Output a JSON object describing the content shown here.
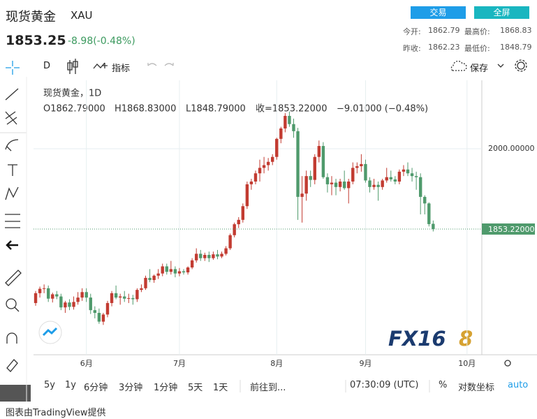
{
  "header": {
    "name": "现货黄金",
    "symbol": "XAU",
    "price": "1853.25",
    "change": "-8.98(-0.48%)",
    "buttons": [
      "交易",
      "全屏"
    ],
    "stats": [
      [
        "今开:",
        "1862.79"
      ],
      [
        "最高价:",
        "1868.83"
      ],
      [
        "昨收:",
        "1862.23"
      ],
      [
        "最低价:",
        "1848.79"
      ]
    ]
  },
  "toolbar": {
    "interval": "D",
    "indicators": "指标",
    "save": "保存"
  },
  "chart_data": {
    "type": "candlestick",
    "legend": {
      "title": "现货黄金，1D",
      "open": "O1862.79000",
      "high": "H1868.83000",
      "low": "L1848.79000",
      "close": "收=1853.22000",
      "change": "−9.01000 (−0.48%)"
    },
    "up_color": "#c23b31",
    "down_color": "#4f9a6c",
    "grid": true,
    "xlim": [
      -0.5,
      105.5
    ],
    "xticks": [
      {
        "value": 12,
        "label": "6月"
      },
      {
        "value": 34,
        "label": "7月"
      },
      {
        "value": 57,
        "label": "8月"
      },
      {
        "value": 78,
        "label": "9月"
      },
      {
        "value": 102,
        "label": "10月"
      }
    ],
    "ylim": [
      1623.5,
      2125
    ],
    "yticks": [
      {
        "value": 2000,
        "label": "2000.00000"
      }
    ],
    "last_price": {
      "value": 1853.22,
      "label": "1853.22000"
    },
    "logo": [
      "FX16",
      "8"
    ],
    "ohlc": [
      [
        1718,
        1740,
        1713,
        1736
      ],
      [
        1736,
        1748,
        1728,
        1744
      ],
      [
        1744,
        1752,
        1736,
        1745
      ],
      [
        1745,
        1750,
        1720,
        1726
      ],
      [
        1726,
        1737,
        1719,
        1734
      ],
      [
        1734,
        1740,
        1725,
        1730
      ],
      [
        1730,
        1735,
        1705,
        1710
      ],
      [
        1710,
        1722,
        1700,
        1719
      ],
      [
        1719,
        1725,
        1705,
        1711
      ],
      [
        1711,
        1730,
        1706,
        1720
      ],
      [
        1720,
        1738,
        1715,
        1728
      ],
      [
        1728,
        1745,
        1722,
        1738
      ],
      [
        1738,
        1745,
        1720,
        1728
      ],
      [
        1728,
        1735,
        1698,
        1705
      ],
      [
        1705,
        1712,
        1690,
        1700
      ],
      [
        1700,
        1708,
        1680,
        1684
      ],
      [
        1684,
        1700,
        1678,
        1697
      ],
      [
        1697,
        1722,
        1692,
        1718
      ],
      [
        1718,
        1740,
        1712,
        1736
      ],
      [
        1736,
        1750,
        1725,
        1728
      ],
      [
        1728,
        1735,
        1715,
        1730
      ],
      [
        1730,
        1740,
        1720,
        1726
      ],
      [
        1726,
        1735,
        1718,
        1727
      ],
      [
        1727,
        1733,
        1715,
        1725
      ],
      [
        1725,
        1745,
        1720,
        1742
      ],
      [
        1742,
        1752,
        1738,
        1745
      ],
      [
        1745,
        1768,
        1742,
        1764
      ],
      [
        1764,
        1780,
        1756,
        1760
      ],
      [
        1760,
        1770,
        1755,
        1768
      ],
      [
        1768,
        1780,
        1762,
        1772
      ],
      [
        1772,
        1790,
        1767,
        1785
      ],
      [
        1785,
        1790,
        1770,
        1775
      ],
      [
        1775,
        1795,
        1770,
        1780
      ],
      [
        1780,
        1785,
        1765,
        1772
      ],
      [
        1772,
        1782,
        1767,
        1776
      ],
      [
        1776,
        1780,
        1770,
        1774
      ],
      [
        1774,
        1785,
        1770,
        1783
      ],
      [
        1783,
        1800,
        1780,
        1796
      ],
      [
        1796,
        1818,
        1792,
        1808
      ],
      [
        1808,
        1815,
        1795,
        1800
      ],
      [
        1800,
        1810,
        1795,
        1806
      ],
      [
        1806,
        1812,
        1793,
        1800
      ],
      [
        1800,
        1812,
        1797,
        1807
      ],
      [
        1807,
        1815,
        1798,
        1803
      ],
      [
        1803,
        1812,
        1800,
        1808
      ],
      [
        1808,
        1822,
        1805,
        1818
      ],
      [
        1818,
        1845,
        1815,
        1842
      ],
      [
        1842,
        1865,
        1838,
        1862
      ],
      [
        1862,
        1875,
        1855,
        1870
      ],
      [
        1870,
        1900,
        1865,
        1895
      ],
      [
        1895,
        1940,
        1890,
        1935
      ],
      [
        1935,
        1945,
        1925,
        1940
      ],
      [
        1940,
        1960,
        1935,
        1955
      ],
      [
        1955,
        1980,
        1940,
        1965
      ],
      [
        1965,
        1985,
        1955,
        1970
      ],
      [
        1970,
        1983,
        1960,
        1976
      ],
      [
        1976,
        1990,
        1970,
        1985
      ],
      [
        1985,
        2020,
        1980,
        2018
      ],
      [
        2018,
        2040,
        2010,
        2037
      ],
      [
        2037,
        2065,
        2030,
        2060
      ],
      [
        2060,
        2068,
        2040,
        2045
      ],
      [
        2045,
        2055,
        2020,
        2032
      ],
      [
        2032,
        2038,
        1870,
        1912
      ],
      [
        1912,
        1950,
        1865,
        1918
      ],
      [
        1918,
        1960,
        1905,
        1950
      ],
      [
        1950,
        1960,
        1930,
        1943
      ],
      [
        1943,
        1990,
        1935,
        1985
      ],
      [
        1985,
        2015,
        1975,
        2005
      ],
      [
        2005,
        2012,
        1945,
        1948
      ],
      [
        1948,
        1955,
        1920,
        1935
      ],
      [
        1935,
        1950,
        1915,
        1938
      ],
      [
        1938,
        1945,
        1915,
        1930
      ],
      [
        1930,
        1945,
        1922,
        1940
      ],
      [
        1940,
        1960,
        1925,
        1928
      ],
      [
        1928,
        1945,
        1900,
        1940
      ],
      [
        1940,
        1975,
        1935,
        1965
      ],
      [
        1965,
        1975,
        1955,
        1968
      ],
      [
        1968,
        1990,
        1958,
        1972
      ],
      [
        1972,
        1980,
        1938,
        1942
      ],
      [
        1942,
        1948,
        1920,
        1930
      ],
      [
        1930,
        1945,
        1925,
        1934
      ],
      [
        1934,
        1940,
        1905,
        1930
      ],
      [
        1930,
        1945,
        1925,
        1942
      ],
      [
        1942,
        1965,
        1938,
        1948
      ],
      [
        1948,
        1960,
        1940,
        1944
      ],
      [
        1944,
        1950,
        1935,
        1940
      ],
      [
        1940,
        1962,
        1935,
        1958
      ],
      [
        1958,
        1970,
        1950,
        1962
      ],
      [
        1962,
        1975,
        1950,
        1955
      ],
      [
        1955,
        1965,
        1940,
        1950
      ],
      [
        1950,
        1958,
        1925,
        1948
      ],
      [
        1948,
        1955,
        1880,
        1912
      ],
      [
        1912,
        1915,
        1880,
        1900
      ],
      [
        1900,
        1902,
        1858,
        1862.23
      ],
      [
        1862.79,
        1868.83,
        1848.79,
        1853.22
      ]
    ]
  },
  "bottom_bar": {
    "ranges": [
      "5y",
      "1y",
      "6分钟",
      "3分钟",
      "1分钟",
      "5天",
      "1天"
    ],
    "goto": "前往到...",
    "time": "07:30:09 (UTC)",
    "percent": "%",
    "log": "对数坐标",
    "auto": "auto"
  },
  "footer": "图表由TradingView提供"
}
